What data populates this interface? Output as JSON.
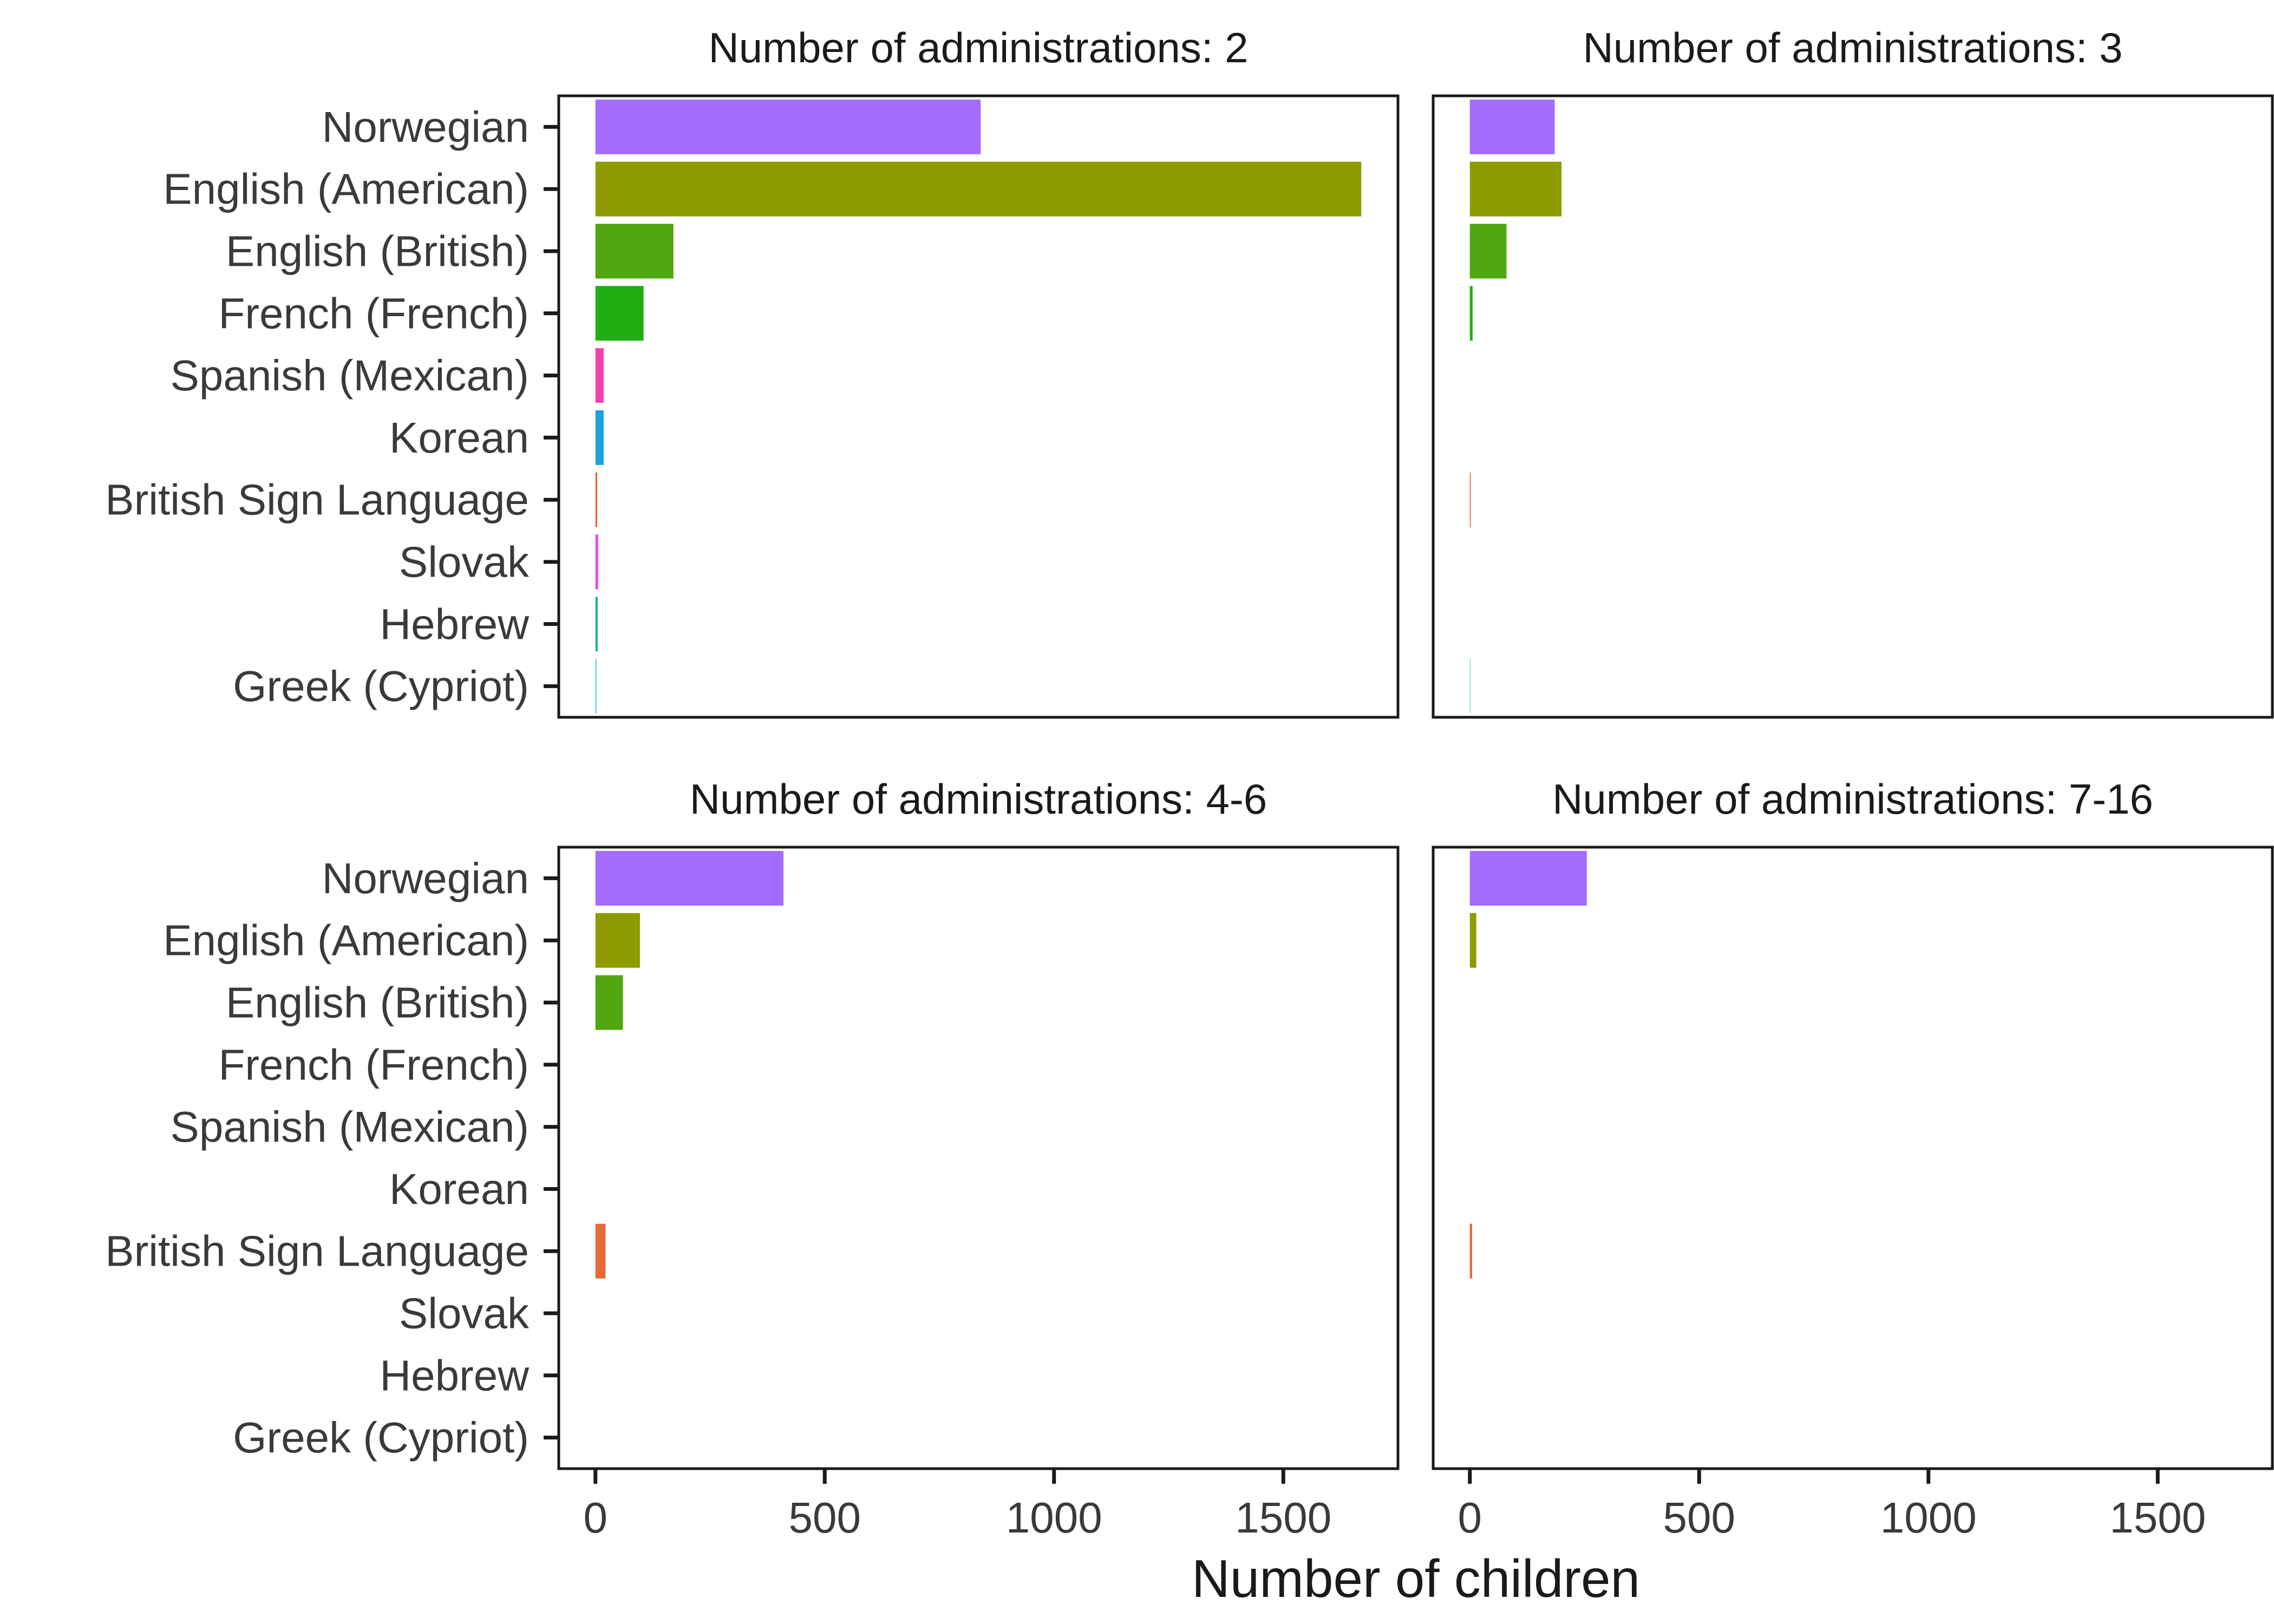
{
  "chart_data": {
    "type": "bar",
    "orientation": "horizontal",
    "xlabel": "Number of children",
    "ylabel": "",
    "xlim": [
      -80,
      1750
    ],
    "x_ticks": [
      0,
      500,
      1000,
      1500
    ],
    "categories": [
      "Norwegian",
      "English (American)",
      "English (British)",
      "French (French)",
      "Spanish (Mexican)",
      "Korean",
      "British Sign Language",
      "Slovak",
      "Hebrew",
      "Greek (Cypriot)"
    ],
    "colors": {
      "Norwegian": "#a36cff",
      "English (American)": "#8d9b00",
      "English (British)": "#50a60f",
      "French (French)": "#1faf10",
      "Spanish (Mexican)": "#f242b0",
      "Korean": "#1ca3dc",
      "British Sign Language": "#e9683a",
      "Slovak": "#df4fe8",
      "Hebrew": "#1fb886",
      "Greek (Cypriot)": "#31c1c0"
    },
    "grid": false,
    "legend": "none",
    "facets": [
      {
        "title": "Number of administrations: 2",
        "values": [
          840,
          1670,
          170,
          105,
          18,
          18,
          4,
          6,
          5,
          2
        ]
      },
      {
        "title": "Number of administrations: 3",
        "values": [
          185,
          200,
          80,
          6,
          0,
          0,
          2,
          0,
          0,
          1
        ]
      },
      {
        "title": "Number of administrations: 4-6",
        "values": [
          410,
          97,
          60,
          0,
          0,
          0,
          22,
          0,
          0,
          0
        ]
      },
      {
        "title": "Number of administrations: 7-16",
        "values": [
          255,
          14,
          0,
          0,
          0,
          0,
          5,
          0,
          0,
          0
        ]
      }
    ]
  }
}
